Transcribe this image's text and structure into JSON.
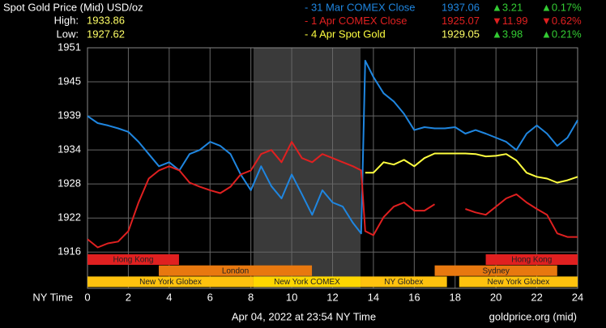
{
  "chart_data": {
    "type": "line",
    "title": "Spot Gold Price (Mid) USD/oz",
    "high_label": "High:",
    "high": 1933.86,
    "low_label": "Low:",
    "low": 1927.62,
    "x_label": "NY Time",
    "footer": "Apr 04, 2022 at 23:54 NY Time",
    "source": "goldprice.org (mid)",
    "background": "#000000",
    "grid": true,
    "xlim": [
      0,
      24
    ],
    "xticks": [
      0,
      2,
      4,
      6,
      8,
      10,
      12,
      14,
      16,
      18,
      20,
      22,
      24
    ],
    "ylim": [
      1909.8,
      1951
    ],
    "yticks": [
      1916,
      {
        "value": 1921.83,
        "label": "1922"
      },
      {
        "value": 1927.67,
        "label": "1928"
      },
      {
        "value": 1933.5,
        "label": "1934"
      },
      {
        "value": 1939.33,
        "label": "1939"
      },
      {
        "value": 1945.17,
        "label": "1945"
      },
      1951
    ],
    "shaded_region": [
      8.13,
      13.37
    ],
    "x": [
      0,
      0.5,
      1,
      1.5,
      2,
      2.5,
      3,
      3.5,
      4,
      4.5,
      5,
      5.5,
      6,
      6.5,
      7,
      7.5,
      8,
      8.5,
      9,
      9.5,
      10,
      10.5,
      11,
      11.5,
      12,
      12.5,
      13,
      13.4,
      13.6,
      14,
      14.5,
      15,
      15.5,
      16,
      16.5,
      17,
      17.5,
      18,
      18.5,
      19,
      19.5,
      20,
      20.5,
      21,
      21.5,
      22,
      22.5,
      23,
      23.5,
      24
    ],
    "series": [
      {
        "name": "- 31 Mar COMEX Close",
        "color": "#1f86e0",
        "close": 1937.06,
        "change": 3.21,
        "change_label": "▲3.21",
        "change_pct": 0.17,
        "change_pct_label": "▲0.17%",
        "values": [
          1939.3,
          1938.1,
          1937.7,
          1937.2,
          1936.6,
          1934.9,
          1932.8,
          1930.7,
          1931.4,
          1930.0,
          1932.8,
          1933.5,
          1934.9,
          1934.2,
          1932.8,
          1929.3,
          1926.6,
          1930.7,
          1927.3,
          1925.2,
          1929.3,
          1925.9,
          1922.4,
          1926.6,
          1924.5,
          1923.8,
          1921.0,
          1919.2,
          1948.8,
          1946.0,
          1943.2,
          1941.8,
          1939.7,
          1936.9,
          1937.4,
          1937.2,
          1937.2,
          1937.4,
          1936.3,
          1936.9,
          1936.3,
          1935.6,
          1934.9,
          1933.5,
          1936.3,
          1937.7,
          1936.3,
          1934.2,
          1935.6,
          1938.6
        ]
      },
      {
        "name": "- 1 Apr COMEX Close",
        "color": "#e02020",
        "close": 1925.07,
        "change": -11.99,
        "change_label": "▼11.99",
        "change_pct": -0.62,
        "change_pct_label": "▼0.62%",
        "values": [
          1918.2,
          1916.8,
          1917.5,
          1917.8,
          1919.6,
          1924.5,
          1928.6,
          1930.0,
          1930.7,
          1930.0,
          1927.9,
          1927.2,
          1926.6,
          1926.1,
          1927.2,
          1929.3,
          1930.0,
          1932.8,
          1933.5,
          1931.4,
          1934.9,
          1932.1,
          1931.4,
          1932.8,
          1932.1,
          1931.4,
          1930.7,
          1930.0,
          1919.6,
          1918.9,
          1922.0,
          1923.8,
          1924.5,
          1923.1,
          1923.1,
          1924.2,
          null,
          null,
          1923.4,
          1922.8,
          1922.4,
          1923.8,
          1925.2,
          1925.9,
          1924.5,
          1923.4,
          1922.4,
          1919.2,
          1918.6,
          1918.6
        ]
      },
      {
        "name": "- 4 Apr Spot Gold",
        "color": "#ffff40",
        "close": 1929.05,
        "change": 3.98,
        "change_label": "▲3.98",
        "change_pct": 0.21,
        "change_pct_label": "▲0.21%",
        "values": [
          null,
          null,
          null,
          null,
          null,
          null,
          null,
          null,
          null,
          null,
          null,
          null,
          null,
          null,
          null,
          null,
          null,
          null,
          null,
          null,
          null,
          null,
          null,
          null,
          null,
          null,
          null,
          null,
          1929.6,
          1929.6,
          1931.4,
          1931.0,
          1931.8,
          1930.7,
          1932.1,
          1932.9,
          1932.9,
          1932.9,
          1932.9,
          1932.8,
          1932.4,
          1932.5,
          1932.8,
          1931.7,
          1929.6,
          1928.9,
          1928.6,
          1927.9,
          1928.3,
          1928.9
        ]
      }
    ],
    "sessions": [
      [
        {
          "label": "Hong Kong",
          "start": 0,
          "end": 4.48,
          "color": "#e02020"
        },
        {
          "label": "Hong Kong",
          "start": 19.5,
          "end": 24,
          "color": "#e02020"
        }
      ],
      [
        {
          "label": "London",
          "start": 3.49,
          "end": 10.99,
          "color": "#e8780f"
        },
        {
          "label": "Sydney",
          "start": 17.0,
          "end": 23.0,
          "color": "#e8780f"
        }
      ],
      [
        {
          "label": "New York Globex",
          "start": 0,
          "end": 8.13,
          "color": "#ffc20e"
        },
        {
          "label": "New York COMEX",
          "start": 8.13,
          "end": 13.37,
          "color": "#ffd700"
        },
        {
          "label": "NY Globex",
          "start": 13.37,
          "end": 17.6,
          "color": "#ffc20e"
        },
        {
          "label": "New York Globex",
          "start": 18.2,
          "end": 24,
          "color": "#ffc20e"
        }
      ]
    ]
  }
}
